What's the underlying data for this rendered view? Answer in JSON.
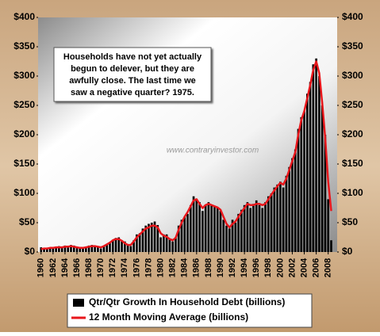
{
  "chart_data": {
    "type": "bar+line",
    "annotation": [
      "Households have not yet actually",
      "begun to delever, but they are",
      "awfully close.  The last time we",
      "saw a negative quarter?  1975."
    ],
    "watermark": "www.contraryinvestor.com",
    "x": [
      1960,
      1960.5,
      1961,
      1961.5,
      1962,
      1962.5,
      1963,
      1963.5,
      1964,
      1964.5,
      1965,
      1965.5,
      1966,
      1966.5,
      1967,
      1967.5,
      1968,
      1968.5,
      1969,
      1969.5,
      1970,
      1970.5,
      1971,
      1971.5,
      1972,
      1972.5,
      1973,
      1973.5,
      1974,
      1974.5,
      1975,
      1975.5,
      1976,
      1976.5,
      1977,
      1977.5,
      1978,
      1978.5,
      1979,
      1979.5,
      1980,
      1980.5,
      1981,
      1981.5,
      1982,
      1982.5,
      1983,
      1983.5,
      1984,
      1984.5,
      1985,
      1985.5,
      1986,
      1986.5,
      1987,
      1987.5,
      1988,
      1988.5,
      1989,
      1989.5,
      1990,
      1990.5,
      1991,
      1991.5,
      1992,
      1992.5,
      1993,
      1993.5,
      1994,
      1994.5,
      1995,
      1995.5,
      1996,
      1996.5,
      1997,
      1997.5,
      1998,
      1998.5,
      1999,
      1999.5,
      2000,
      2000.5,
      2001,
      2001.5,
      2002,
      2002.5,
      2003,
      2003.5,
      2004,
      2004.5,
      2005,
      2005.5,
      2006,
      2006.5,
      2007,
      2007.5,
      2008,
      2008.5
    ],
    "series": [
      {
        "name": "Qtr/Qtr Growth In Household Debt (billions)",
        "type": "bar",
        "color": "#000000",
        "values": [
          8,
          6,
          5,
          7,
          8,
          9,
          10,
          9,
          11,
          10,
          12,
          11,
          9,
          8,
          7,
          9,
          11,
          12,
          11,
          9,
          6,
          10,
          14,
          17,
          21,
          24,
          25,
          20,
          18,
          12,
          10,
          20,
          30,
          32,
          40,
          45,
          48,
          50,
          52,
          46,
          25,
          30,
          30,
          22,
          18,
          25,
          45,
          55,
          60,
          65,
          80,
          95,
          90,
          85,
          70,
          80,
          85,
          80,
          78,
          75,
          70,
          55,
          45,
          40,
          55,
          50,
          65,
          72,
          80,
          85,
          75,
          82,
          88,
          80,
          75,
          85,
          95,
          100,
          110,
          115,
          120,
          110,
          130,
          145,
          160,
          175,
          210,
          230,
          240,
          270,
          290,
          320,
          330,
          300,
          250,
          200,
          90,
          20
        ]
      },
      {
        "name": "12 Month Moving Average (billions)",
        "type": "line",
        "color": "#e8161b",
        "values": [
          5,
          6,
          6,
          7,
          7,
          8,
          8,
          8,
          9,
          9,
          10,
          9,
          8,
          7,
          7,
          8,
          9,
          10,
          10,
          9,
          8,
          10,
          13,
          16,
          20,
          22,
          22,
          19,
          15,
          12,
          12,
          18,
          25,
          30,
          35,
          40,
          42,
          45,
          45,
          42,
          32,
          28,
          26,
          22,
          20,
          24,
          38,
          50,
          60,
          68,
          78,
          88,
          90,
          82,
          75,
          80,
          82,
          80,
          78,
          76,
          72,
          60,
          48,
          42,
          48,
          52,
          60,
          68,
          75,
          82,
          80,
          80,
          82,
          82,
          80,
          82,
          90,
          98,
          105,
          112,
          118,
          115,
          125,
          140,
          155,
          170,
          200,
          225,
          240,
          262,
          285,
          310,
          325,
          305,
          255,
          195,
          120,
          70
        ]
      }
    ],
    "xlim": [
      1959.5,
      2009.5
    ],
    "xticks": [
      1960,
      1962,
      1964,
      1966,
      1968,
      1970,
      1972,
      1974,
      1976,
      1978,
      1980,
      1982,
      1984,
      1986,
      1988,
      1990,
      1992,
      1994,
      1996,
      1998,
      2000,
      2002,
      2004,
      2006,
      2008
    ],
    "ylim": [
      0,
      400
    ],
    "yticks": [
      {
        "value": 0,
        "label": "$0"
      },
      {
        "value": 50,
        "label": "$50"
      },
      {
        "value": 100,
        "label": "$100"
      },
      {
        "value": 150,
        "label": "$150"
      },
      {
        "value": 200,
        "label": "$200"
      },
      {
        "value": 250,
        "label": "$250"
      },
      {
        "value": 300,
        "label": "$300"
      },
      {
        "value": 350,
        "label": "$350"
      },
      {
        "value": 400,
        "label": "$400"
      }
    ],
    "y2lim": [
      0,
      400
    ],
    "y2ticks": [
      {
        "value": 0,
        "label": "$0"
      },
      {
        "value": 50,
        "label": "$50"
      },
      {
        "value": 100,
        "label": "$100"
      },
      {
        "value": 150,
        "label": "$150"
      },
      {
        "value": 200,
        "label": "$200"
      },
      {
        "value": 250,
        "label": "$250"
      },
      {
        "value": 300,
        "label": "$300"
      },
      {
        "value": 350,
        "label": "$350"
      },
      {
        "value": 400,
        "label": "$400"
      }
    ]
  }
}
